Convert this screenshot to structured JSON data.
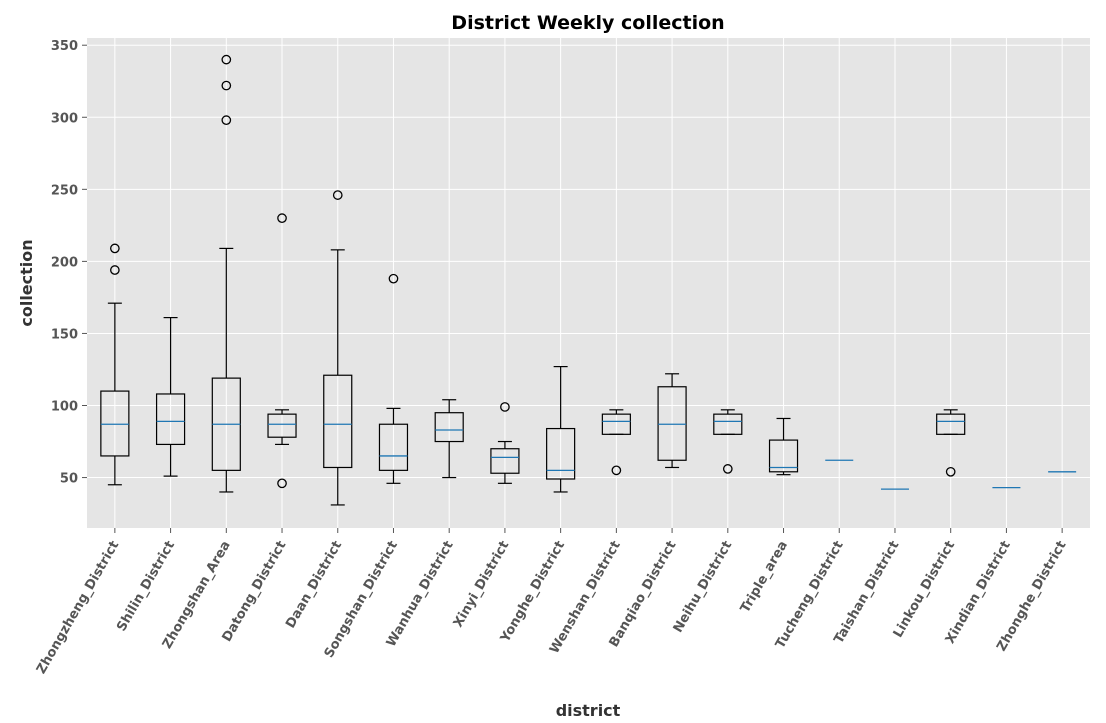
{
  "chart_data": {
    "type": "boxplot",
    "title": "District Weekly collection",
    "xlabel": "district",
    "ylabel": "collection",
    "ylim": [
      15,
      355
    ],
    "yticks": [
      50,
      100,
      150,
      200,
      250,
      300,
      350
    ],
    "grid": true,
    "colors": {
      "plot_bg": "#e5e5e5",
      "grid": "#ffffff",
      "box": "#000000",
      "median": "#1f77b4",
      "tick": "#555555"
    },
    "categories": [
      "Zhongzheng_District",
      "Shilin_District",
      "Zhongshan_Area",
      "Datong_District",
      "Daan_District",
      "Songshan_District",
      "Wanhua_District",
      "Xinyi_District",
      "Yonghe_District",
      "Wenshan_District",
      "Banqiao_District",
      "Neihu_District",
      "Triple_area",
      "Tucheng_District",
      "Taishan_District",
      "Linkou_District",
      "Xindian_District",
      "Zhonghe_District"
    ],
    "boxes": [
      {
        "whislo": 45,
        "q1": 65,
        "med": 87,
        "q3": 110,
        "whishi": 171,
        "fliers": [
          194,
          209
        ]
      },
      {
        "whislo": 51,
        "q1": 73,
        "med": 89,
        "q3": 108,
        "whishi": 161,
        "fliers": []
      },
      {
        "whislo": 40,
        "q1": 55,
        "med": 87,
        "q3": 119,
        "whishi": 209,
        "fliers": [
          298,
          322,
          340
        ]
      },
      {
        "whislo": 73,
        "q1": 78,
        "med": 87,
        "q3": 94,
        "whishi": 97,
        "fliers": [
          46,
          230
        ]
      },
      {
        "whislo": 31,
        "q1": 57,
        "med": 87,
        "q3": 121,
        "whishi": 208,
        "fliers": [
          246
        ]
      },
      {
        "whislo": 46,
        "q1": 55,
        "med": 65,
        "q3": 87,
        "whishi": 98,
        "fliers": [
          188
        ]
      },
      {
        "whislo": 50,
        "q1": 75,
        "med": 83,
        "q3": 95,
        "whishi": 104,
        "fliers": []
      },
      {
        "whislo": 46,
        "q1": 53,
        "med": 64,
        "q3": 70,
        "whishi": 75,
        "fliers": [
          99
        ]
      },
      {
        "whislo": 40,
        "q1": 49,
        "med": 55,
        "q3": 84,
        "whishi": 127,
        "fliers": []
      },
      {
        "whislo": 80,
        "q1": 80,
        "med": 89,
        "q3": 94,
        "whishi": 97,
        "fliers": [
          55
        ]
      },
      {
        "whislo": 57,
        "q1": 62,
        "med": 87,
        "q3": 113,
        "whishi": 122,
        "fliers": []
      },
      {
        "whislo": 80,
        "q1": 80,
        "med": 89,
        "q3": 94,
        "whishi": 97,
        "fliers": [
          56
        ]
      },
      {
        "whislo": 52,
        "q1": 54,
        "med": 57,
        "q3": 76,
        "whishi": 91,
        "fliers": []
      },
      {
        "whislo": 62,
        "q1": 62,
        "med": 62,
        "q3": 62,
        "whishi": 62,
        "fliers": []
      },
      {
        "whislo": 42,
        "q1": 42,
        "med": 42,
        "q3": 42,
        "whishi": 42,
        "fliers": []
      },
      {
        "whislo": 80,
        "q1": 80,
        "med": 89,
        "q3": 94,
        "whishi": 97,
        "fliers": [
          54
        ]
      },
      {
        "whislo": 43,
        "q1": 43,
        "med": 43,
        "q3": 43,
        "whishi": 43,
        "fliers": []
      },
      {
        "whislo": 54,
        "q1": 54,
        "med": 54,
        "q3": 54,
        "whishi": 54,
        "fliers": []
      }
    ]
  }
}
